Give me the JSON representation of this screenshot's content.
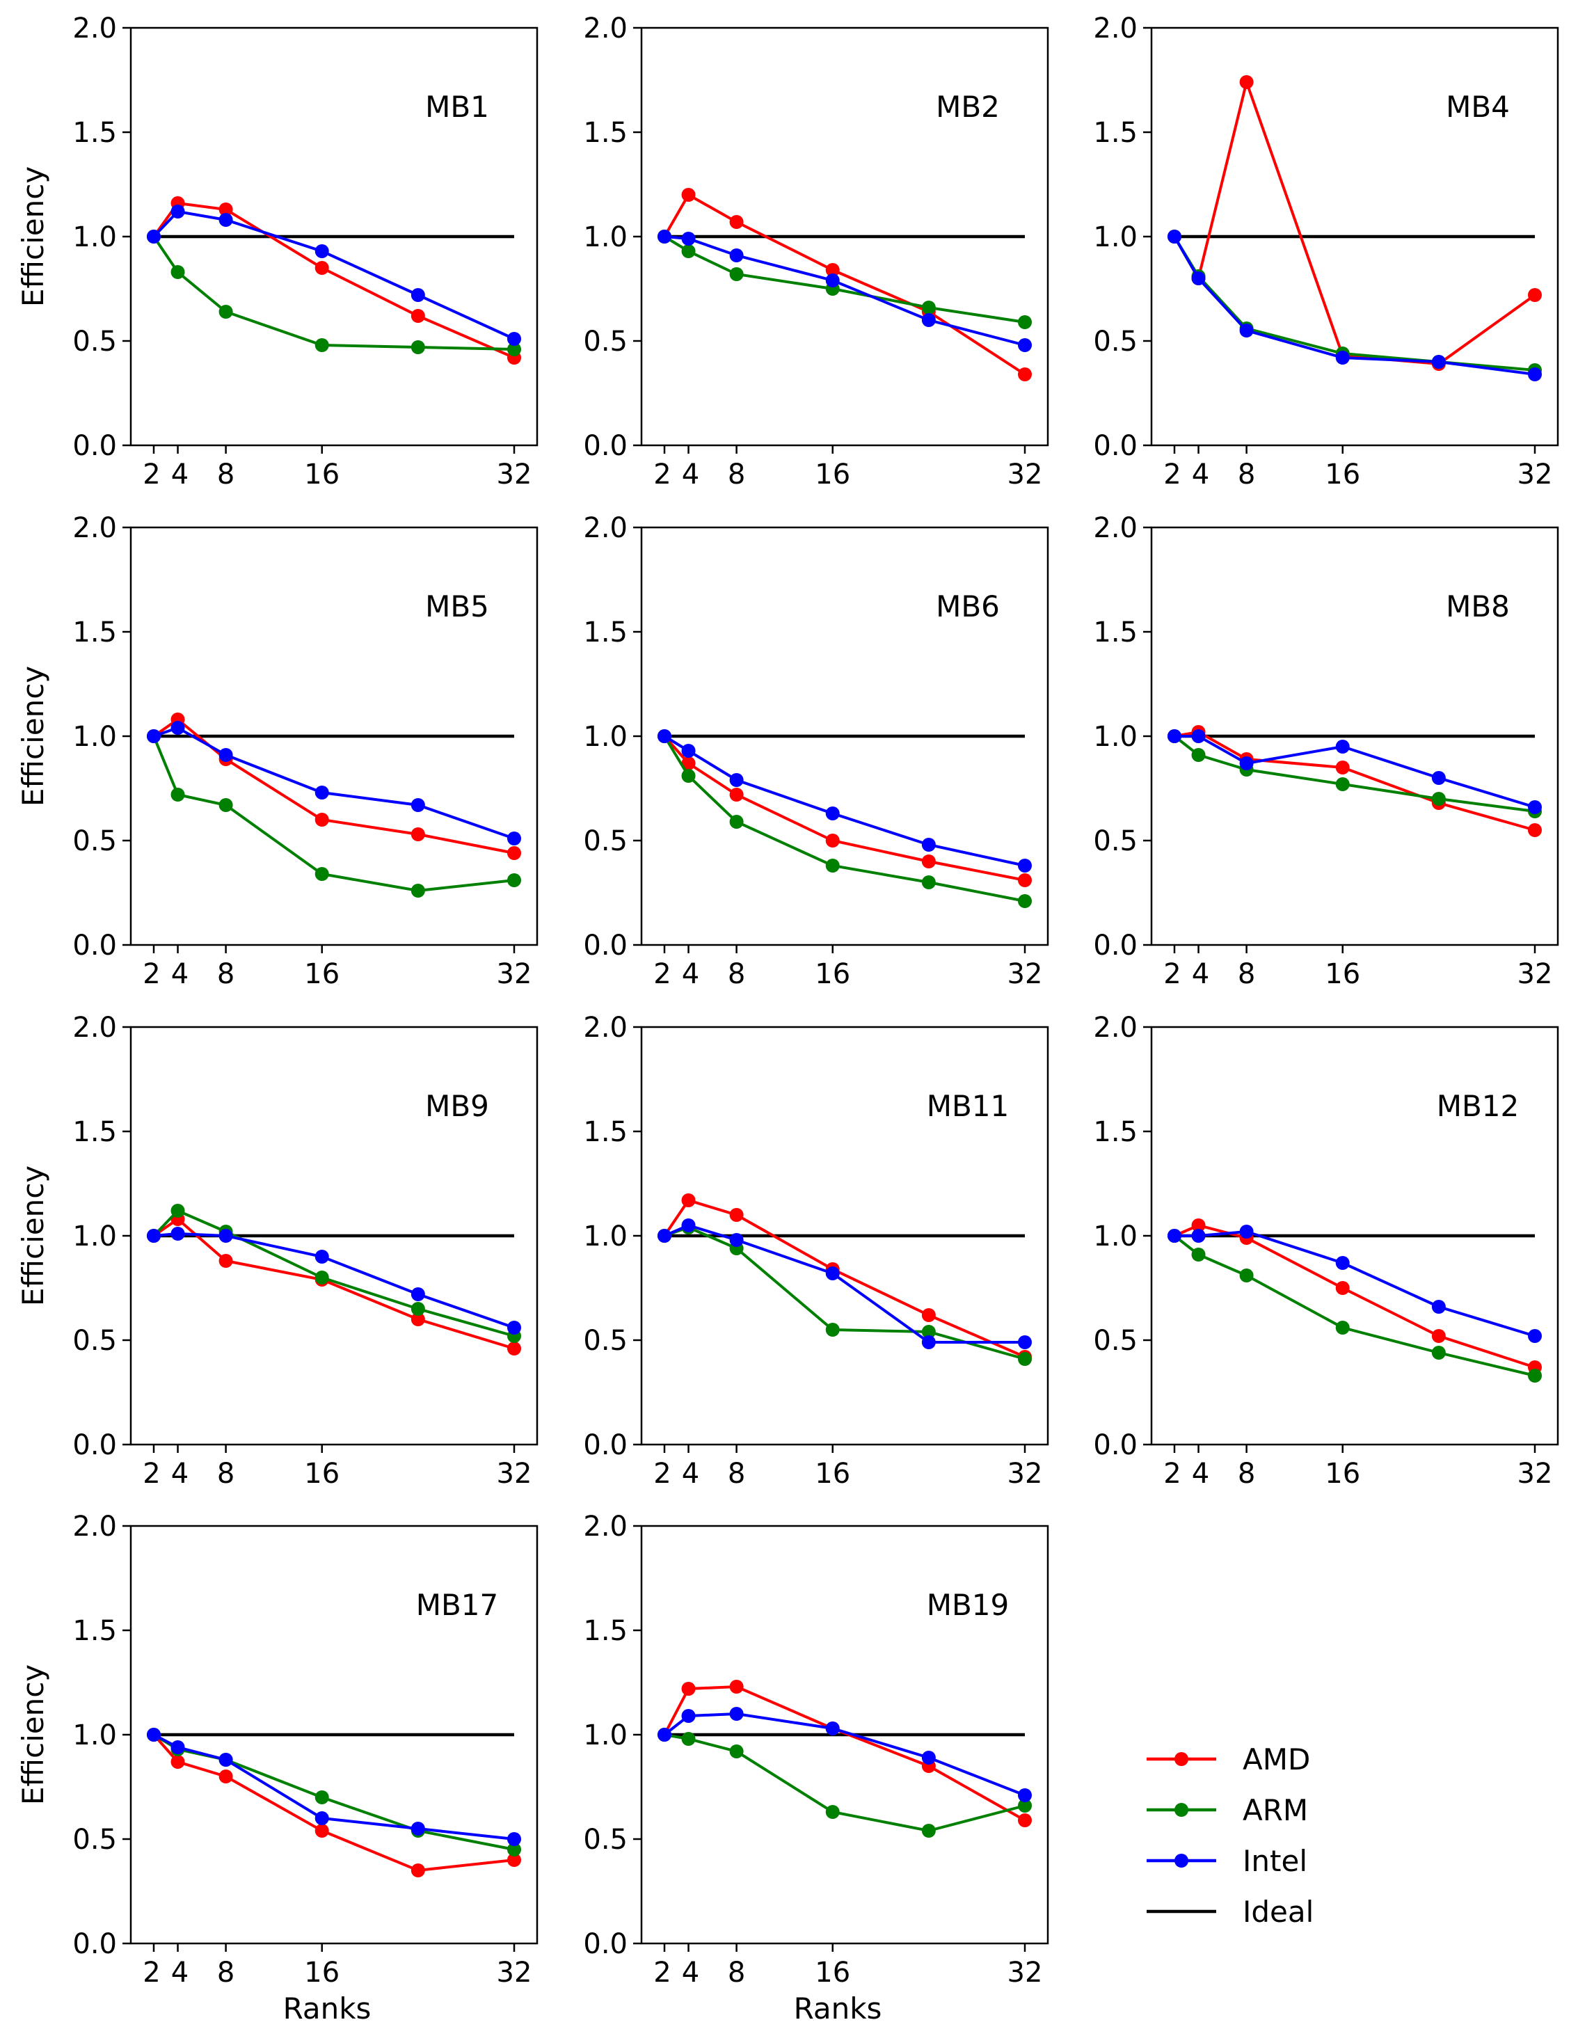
{
  "colors": {
    "AMD": "#ff0000",
    "ARM": "#008000",
    "Intel": "#0000ff",
    "Ideal": "#000000"
  },
  "legend": {
    "placement": "bottom-right",
    "items": [
      {
        "label": "AMD",
        "color": "#ff0000",
        "marker": true
      },
      {
        "label": "ARM",
        "color": "#008000",
        "marker": true
      },
      {
        "label": "Intel",
        "color": "#0000ff",
        "marker": true
      },
      {
        "label": "Ideal",
        "color": "#000000",
        "marker": false
      }
    ]
  },
  "chart_data": [
    {
      "type": "line",
      "title": "MB1",
      "xlabel": "",
      "ylabel": "Efficiency",
      "x": [
        2,
        4,
        8,
        16,
        24,
        32
      ],
      "xticks": [
        "2",
        "4",
        "8",
        "16",
        "32"
      ],
      "yticks": [
        "0.0",
        "0.5",
        "1.0",
        "1.5",
        "2.0"
      ],
      "xlim": [
        2,
        32
      ],
      "ylim": [
        0,
        2
      ],
      "ideal": 1.0,
      "series": [
        {
          "name": "AMD",
          "values": [
            1.0,
            1.16,
            1.13,
            0.85,
            0.62,
            0.42
          ]
        },
        {
          "name": "ARM",
          "values": [
            1.0,
            0.83,
            0.64,
            0.48,
            0.47,
            0.46
          ]
        },
        {
          "name": "Intel",
          "values": [
            1.0,
            1.12,
            1.08,
            0.93,
            0.72,
            0.51
          ]
        }
      ]
    },
    {
      "type": "line",
      "title": "MB2",
      "xlabel": "",
      "ylabel": "",
      "x": [
        2,
        4,
        8,
        16,
        24,
        32
      ],
      "xticks": [
        "2",
        "4",
        "8",
        "16",
        "32"
      ],
      "yticks": [
        "0.0",
        "0.5",
        "1.0",
        "1.5",
        "2.0"
      ],
      "xlim": [
        2,
        32
      ],
      "ylim": [
        0,
        2
      ],
      "ideal": 1.0,
      "series": [
        {
          "name": "AMD",
          "values": [
            1.0,
            1.2,
            1.07,
            0.84,
            0.64,
            0.34
          ]
        },
        {
          "name": "ARM",
          "values": [
            1.0,
            0.93,
            0.82,
            0.75,
            0.66,
            0.59
          ]
        },
        {
          "name": "Intel",
          "values": [
            1.0,
            0.99,
            0.91,
            0.79,
            0.6,
            0.48
          ]
        }
      ]
    },
    {
      "type": "line",
      "title": "MB4",
      "xlabel": "",
      "ylabel": "",
      "x": [
        2,
        4,
        8,
        16,
        24,
        32
      ],
      "xticks": [
        "2",
        "4",
        "8",
        "16",
        "32"
      ],
      "yticks": [
        "0.0",
        "0.5",
        "1.0",
        "1.5",
        "2.0"
      ],
      "xlim": [
        2,
        32
      ],
      "ylim": [
        0,
        2
      ],
      "ideal": 1.0,
      "series": [
        {
          "name": "AMD",
          "values": [
            1.0,
            0.8,
            1.74,
            0.43,
            0.39,
            0.72
          ]
        },
        {
          "name": "ARM",
          "values": [
            1.0,
            0.81,
            0.56,
            0.44,
            0.4,
            0.36
          ]
        },
        {
          "name": "Intel",
          "values": [
            1.0,
            0.8,
            0.55,
            0.42,
            0.4,
            0.34
          ]
        }
      ]
    },
    {
      "type": "line",
      "title": "MB5",
      "xlabel": "",
      "ylabel": "Efficiency",
      "x": [
        2,
        4,
        8,
        16,
        24,
        32
      ],
      "xticks": [
        "2",
        "4",
        "8",
        "16",
        "32"
      ],
      "yticks": [
        "0.0",
        "0.5",
        "1.0",
        "1.5",
        "2.0"
      ],
      "xlim": [
        2,
        32
      ],
      "ylim": [
        0,
        2
      ],
      "ideal": 1.0,
      "series": [
        {
          "name": "AMD",
          "values": [
            1.0,
            1.08,
            0.89,
            0.6,
            0.53,
            0.44
          ]
        },
        {
          "name": "ARM",
          "values": [
            1.0,
            0.72,
            0.67,
            0.34,
            0.26,
            0.31
          ]
        },
        {
          "name": "Intel",
          "values": [
            1.0,
            1.04,
            0.91,
            0.73,
            0.67,
            0.51
          ]
        }
      ]
    },
    {
      "type": "line",
      "title": "MB6",
      "xlabel": "",
      "ylabel": "",
      "x": [
        2,
        4,
        8,
        16,
        24,
        32
      ],
      "xticks": [
        "2",
        "4",
        "8",
        "16",
        "32"
      ],
      "yticks": [
        "0.0",
        "0.5",
        "1.0",
        "1.5",
        "2.0"
      ],
      "xlim": [
        2,
        32
      ],
      "ylim": [
        0,
        2
      ],
      "ideal": 1.0,
      "series": [
        {
          "name": "AMD",
          "values": [
            1.0,
            0.87,
            0.72,
            0.5,
            0.4,
            0.31
          ]
        },
        {
          "name": "ARM",
          "values": [
            1.0,
            0.81,
            0.59,
            0.38,
            0.3,
            0.21
          ]
        },
        {
          "name": "Intel",
          "values": [
            1.0,
            0.93,
            0.79,
            0.63,
            0.48,
            0.38
          ]
        }
      ]
    },
    {
      "type": "line",
      "title": "MB8",
      "xlabel": "",
      "ylabel": "",
      "x": [
        2,
        4,
        8,
        16,
        24,
        32
      ],
      "xticks": [
        "2",
        "4",
        "8",
        "16",
        "32"
      ],
      "yticks": [
        "0.0",
        "0.5",
        "1.0",
        "1.5",
        "2.0"
      ],
      "xlim": [
        2,
        32
      ],
      "ylim": [
        0,
        2
      ],
      "ideal": 1.0,
      "series": [
        {
          "name": "AMD",
          "values": [
            1.0,
            1.02,
            0.89,
            0.85,
            0.68,
            0.55
          ]
        },
        {
          "name": "ARM",
          "values": [
            1.0,
            0.91,
            0.84,
            0.77,
            0.7,
            0.64
          ]
        },
        {
          "name": "Intel",
          "values": [
            1.0,
            1.0,
            0.87,
            0.95,
            0.8,
            0.66
          ]
        }
      ]
    },
    {
      "type": "line",
      "title": "MB9",
      "xlabel": "",
      "ylabel": "Efficiency",
      "x": [
        2,
        4,
        8,
        16,
        24,
        32
      ],
      "xticks": [
        "2",
        "4",
        "8",
        "16",
        "32"
      ],
      "yticks": [
        "0.0",
        "0.5",
        "1.0",
        "1.5",
        "2.0"
      ],
      "xlim": [
        2,
        32
      ],
      "ylim": [
        0,
        2
      ],
      "ideal": 1.0,
      "series": [
        {
          "name": "AMD",
          "values": [
            1.0,
            1.08,
            0.88,
            0.79,
            0.6,
            0.46
          ]
        },
        {
          "name": "ARM",
          "values": [
            1.0,
            1.12,
            1.02,
            0.8,
            0.65,
            0.52
          ]
        },
        {
          "name": "Intel",
          "values": [
            1.0,
            1.01,
            1.0,
            0.9,
            0.72,
            0.56
          ]
        }
      ]
    },
    {
      "type": "line",
      "title": "MB11",
      "xlabel": "",
      "ylabel": "",
      "x": [
        2,
        4,
        8,
        16,
        24,
        32
      ],
      "xticks": [
        "2",
        "4",
        "8",
        "16",
        "32"
      ],
      "yticks": [
        "0.0",
        "0.5",
        "1.0",
        "1.5",
        "2.0"
      ],
      "xlim": [
        2,
        32
      ],
      "ylim": [
        0,
        2
      ],
      "ideal": 1.0,
      "series": [
        {
          "name": "AMD",
          "values": [
            1.0,
            1.17,
            1.1,
            0.84,
            0.62,
            0.42
          ]
        },
        {
          "name": "ARM",
          "values": [
            1.0,
            1.04,
            0.94,
            0.55,
            0.54,
            0.41
          ]
        },
        {
          "name": "Intel",
          "values": [
            1.0,
            1.05,
            0.98,
            0.82,
            0.49,
            0.49
          ]
        }
      ]
    },
    {
      "type": "line",
      "title": "MB12",
      "xlabel": "",
      "ylabel": "",
      "x": [
        2,
        4,
        8,
        16,
        24,
        32
      ],
      "xticks": [
        "2",
        "4",
        "8",
        "16",
        "32"
      ],
      "yticks": [
        "0.0",
        "0.5",
        "1.0",
        "1.5",
        "2.0"
      ],
      "xlim": [
        2,
        32
      ],
      "ylim": [
        0,
        2
      ],
      "ideal": 1.0,
      "series": [
        {
          "name": "AMD",
          "values": [
            1.0,
            1.05,
            0.99,
            0.75,
            0.52,
            0.37
          ]
        },
        {
          "name": "ARM",
          "values": [
            1.0,
            0.91,
            0.81,
            0.56,
            0.44,
            0.33
          ]
        },
        {
          "name": "Intel",
          "values": [
            1.0,
            1.0,
            1.02,
            0.87,
            0.66,
            0.52
          ]
        }
      ]
    },
    {
      "type": "line",
      "title": "MB17",
      "xlabel": "Ranks",
      "ylabel": "Efficiency",
      "x": [
        2,
        4,
        8,
        16,
        24,
        32
      ],
      "xticks": [
        "2",
        "4",
        "8",
        "16",
        "32"
      ],
      "yticks": [
        "0.0",
        "0.5",
        "1.0",
        "1.5",
        "2.0"
      ],
      "xlim": [
        2,
        32
      ],
      "ylim": [
        0,
        2
      ],
      "ideal": 1.0,
      "series": [
        {
          "name": "AMD",
          "values": [
            1.0,
            0.87,
            0.8,
            0.54,
            0.35,
            0.4
          ]
        },
        {
          "name": "ARM",
          "values": [
            1.0,
            0.93,
            0.88,
            0.7,
            0.54,
            0.45
          ]
        },
        {
          "name": "Intel",
          "values": [
            1.0,
            0.94,
            0.88,
            0.6,
            0.55,
            0.5
          ]
        }
      ]
    },
    {
      "type": "line",
      "title": "MB19",
      "xlabel": "Ranks",
      "ylabel": "",
      "x": [
        2,
        4,
        8,
        16,
        24,
        32
      ],
      "xticks": [
        "2",
        "4",
        "8",
        "16",
        "32"
      ],
      "yticks": [
        "0.0",
        "0.5",
        "1.0",
        "1.5",
        "2.0"
      ],
      "xlim": [
        2,
        32
      ],
      "ylim": [
        0,
        2
      ],
      "ideal": 1.0,
      "series": [
        {
          "name": "AMD",
          "values": [
            1.0,
            1.22,
            1.23,
            1.03,
            0.85,
            0.59
          ]
        },
        {
          "name": "ARM",
          "values": [
            1.0,
            0.98,
            0.92,
            0.63,
            0.54,
            0.66
          ]
        },
        {
          "name": "Intel",
          "values": [
            1.0,
            1.09,
            1.1,
            1.03,
            0.89,
            0.71
          ]
        }
      ]
    }
  ]
}
